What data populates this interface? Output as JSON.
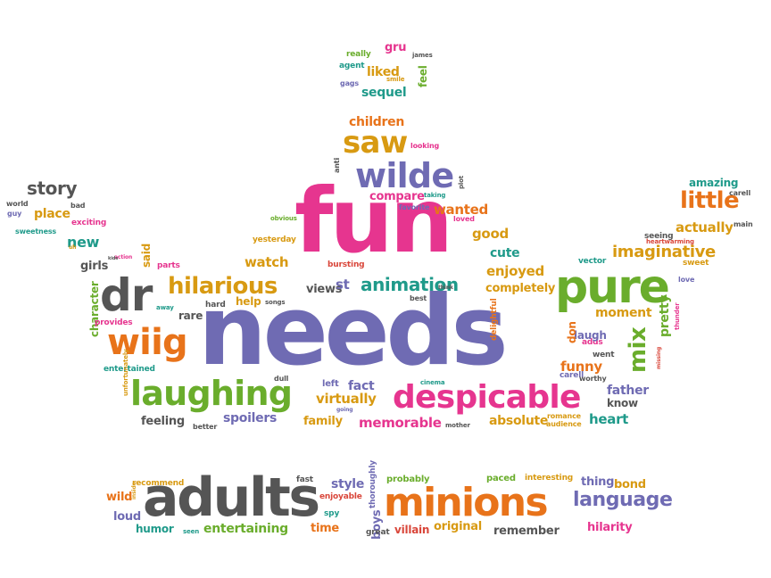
{
  "colors": {
    "purple": "#6f6bb3",
    "pink": "#e6358f",
    "orange": "#e8731a",
    "green": "#6aad2c",
    "gray": "#555555",
    "gold": "#d89a12",
    "teal": "#1f9a8a",
    "red": "#d9463a"
  },
  "words": [
    {
      "text": "needs",
      "color": "purple"
    },
    {
      "text": "fun",
      "color": "pink"
    },
    {
      "text": "pure",
      "color": "green"
    },
    {
      "text": "adults",
      "color": "gray"
    },
    {
      "text": "minions",
      "color": "orange"
    },
    {
      "text": "despicable",
      "color": "pink"
    },
    {
      "text": "laughing",
      "color": "green"
    },
    {
      "text": "wiig",
      "color": "orange"
    },
    {
      "text": "dr",
      "color": "gray"
    },
    {
      "text": "hilarious",
      "color": "gold"
    },
    {
      "text": "wilde",
      "color": "purple"
    },
    {
      "text": "saw",
      "color": "gold"
    },
    {
      "text": "language",
      "color": "purple"
    },
    {
      "text": "little",
      "color": "orange"
    },
    {
      "text": "mix",
      "color": "green"
    },
    {
      "text": "story",
      "color": "gray"
    },
    {
      "text": "imaginative",
      "color": "gold"
    },
    {
      "text": "animation",
      "color": "teal"
    },
    {
      "text": "virtually",
      "color": "gold"
    },
    {
      "text": "memorable",
      "color": "pink"
    },
    {
      "text": "absolute",
      "color": "gold"
    },
    {
      "text": "heart",
      "color": "teal"
    },
    {
      "text": "family",
      "color": "gold"
    },
    {
      "text": "spoilers",
      "color": "purple"
    },
    {
      "text": "feeling",
      "color": "gray"
    },
    {
      "text": "entertaining",
      "color": "green"
    },
    {
      "text": "humor",
      "color": "teal"
    },
    {
      "text": "loud",
      "color": "purple"
    },
    {
      "text": "wild",
      "color": "orange"
    },
    {
      "text": "time",
      "color": "orange"
    },
    {
      "text": "style",
      "color": "purple"
    },
    {
      "text": "boys",
      "color": "purple"
    },
    {
      "text": "villain",
      "color": "red"
    },
    {
      "text": "original",
      "color": "gold"
    },
    {
      "text": "remember",
      "color": "gray"
    },
    {
      "text": "hilarity",
      "color": "pink"
    },
    {
      "text": "thing",
      "color": "purple"
    },
    {
      "text": "bond",
      "color": "gold"
    },
    {
      "text": "paced",
      "color": "green"
    },
    {
      "text": "interesting",
      "color": "gold"
    },
    {
      "text": "probably",
      "color": "green"
    },
    {
      "text": "fast",
      "color": "gray"
    },
    {
      "text": "enjoyable",
      "color": "red"
    },
    {
      "text": "thoroughly",
      "color": "purple"
    },
    {
      "text": "spy",
      "color": "teal"
    },
    {
      "text": "great",
      "color": "gray"
    },
    {
      "text": "seen",
      "color": "teal"
    },
    {
      "text": "recommend",
      "color": "gold"
    },
    {
      "text": "inside",
      "color": "gold"
    },
    {
      "text": "watch",
      "color": "gold"
    },
    {
      "text": "views",
      "color": "gray"
    },
    {
      "text": "st",
      "color": "purple"
    },
    {
      "text": "completely",
      "color": "gold"
    },
    {
      "text": "enjoyed",
      "color": "gold"
    },
    {
      "text": "cute",
      "color": "teal"
    },
    {
      "text": "good",
      "color": "gold"
    },
    {
      "text": "wanted",
      "color": "orange"
    },
    {
      "text": "compare",
      "color": "pink"
    },
    {
      "text": "children",
      "color": "orange"
    },
    {
      "text": "sequel",
      "color": "teal"
    },
    {
      "text": "liked",
      "color": "gold"
    },
    {
      "text": "feel",
      "color": "green"
    },
    {
      "text": "gru",
      "color": "pink"
    },
    {
      "text": "really",
      "color": "green"
    },
    {
      "text": "agent",
      "color": "teal"
    },
    {
      "text": "gags",
      "color": "purple"
    },
    {
      "text": "james",
      "color": "gray"
    },
    {
      "text": "smile",
      "color": "gold"
    },
    {
      "text": "looking",
      "color": "pink"
    },
    {
      "text": "taking",
      "color": "teal"
    },
    {
      "text": "favorite",
      "color": "purple"
    },
    {
      "text": "loved",
      "color": "pink"
    },
    {
      "text": "plot",
      "color": "gray"
    },
    {
      "text": "anti",
      "color": "gray"
    },
    {
      "text": "obvious",
      "color": "green"
    },
    {
      "text": "yesterday",
      "color": "gold"
    },
    {
      "text": "bursting",
      "color": "red"
    },
    {
      "text": "parts",
      "color": "pink"
    },
    {
      "text": "girls",
      "color": "gray"
    },
    {
      "text": "new",
      "color": "teal"
    },
    {
      "text": "said",
      "color": "gold"
    },
    {
      "text": "character",
      "color": "green"
    },
    {
      "text": "place",
      "color": "gold"
    },
    {
      "text": "exciting",
      "color": "pink"
    },
    {
      "text": "sweetness",
      "color": "teal"
    },
    {
      "text": "world",
      "color": "gray"
    },
    {
      "text": "bad",
      "color": "gray"
    },
    {
      "text": "guy",
      "color": "purple"
    },
    {
      "text": "action",
      "color": "pink"
    },
    {
      "text": "kids",
      "color": "gray"
    },
    {
      "text": "uh",
      "color": "gold"
    },
    {
      "text": "provides",
      "color": "pink"
    },
    {
      "text": "away",
      "color": "teal"
    },
    {
      "text": "rare",
      "color": "gray"
    },
    {
      "text": "hard",
      "color": "gray"
    },
    {
      "text": "help",
      "color": "gold"
    },
    {
      "text": "songs",
      "color": "gray"
    },
    {
      "text": "entertained",
      "color": "teal"
    },
    {
      "text": "unfortunately",
      "color": "gold"
    },
    {
      "text": "dull",
      "color": "gray"
    },
    {
      "text": "left",
      "color": "purple"
    },
    {
      "text": "fact",
      "color": "purple"
    },
    {
      "text": "going",
      "color": "purple"
    },
    {
      "text": "cinema",
      "color": "teal"
    },
    {
      "text": "mother",
      "color": "gray"
    },
    {
      "text": "better",
      "color": "gray"
    },
    {
      "text": "best",
      "color": "gray"
    },
    {
      "text": "think",
      "color": "gray"
    },
    {
      "text": "delightful",
      "color": "orange"
    },
    {
      "text": "romance",
      "color": "gold"
    },
    {
      "text": "audience",
      "color": "gold"
    },
    {
      "text": "father",
      "color": "purple"
    },
    {
      "text": "know",
      "color": "gray"
    },
    {
      "text": "funny",
      "color": "orange"
    },
    {
      "text": "carell",
      "color": "purple"
    },
    {
      "text": "worthy",
      "color": "gray"
    },
    {
      "text": "went",
      "color": "gray"
    },
    {
      "text": "adds",
      "color": "pink"
    },
    {
      "text": "laugh",
      "color": "purple"
    },
    {
      "text": "don",
      "color": "orange"
    },
    {
      "text": "moment",
      "color": "gold"
    },
    {
      "text": "pretty",
      "color": "green"
    },
    {
      "text": "missing",
      "color": "red"
    },
    {
      "text": "thunder",
      "color": "pink"
    },
    {
      "text": "vector",
      "color": "teal"
    },
    {
      "text": "love",
      "color": "purple"
    },
    {
      "text": "sweet",
      "color": "gold"
    },
    {
      "text": "seeing",
      "color": "gray"
    },
    {
      "text": "heartwarming",
      "color": "red"
    },
    {
      "text": "main",
      "color": "gray"
    },
    {
      "text": "actually",
      "color": "gold"
    },
    {
      "text": "amazing",
      "color": "teal"
    },
    {
      "text": "carell",
      "color": "gray"
    }
  ]
}
